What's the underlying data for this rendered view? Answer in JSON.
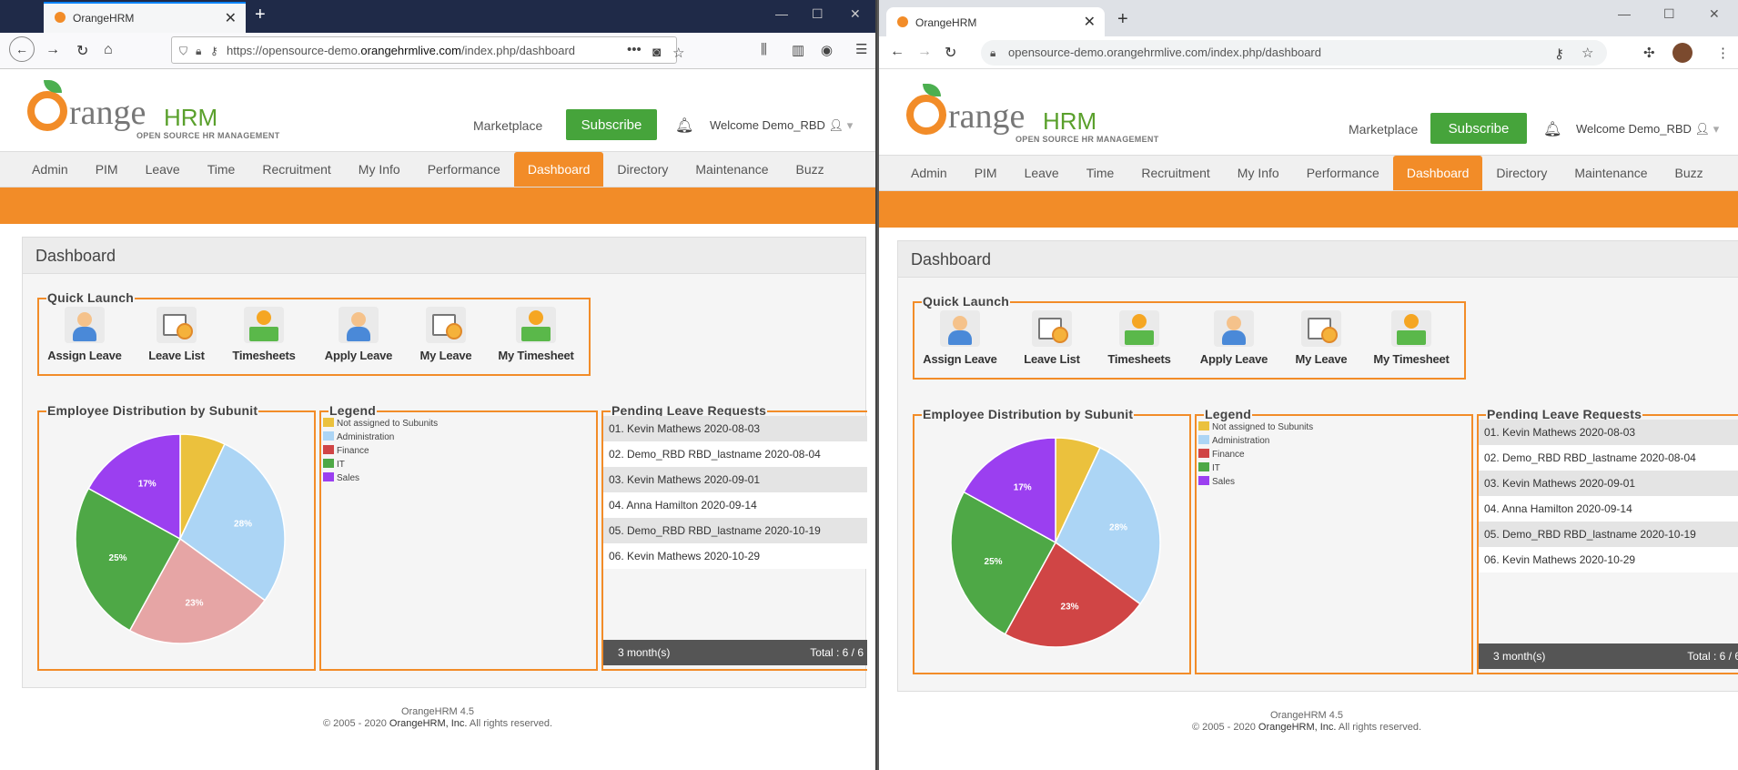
{
  "browser1": {
    "tab_title": "OrangeHRM",
    "url_prefix": "https://opensource-demo.",
    "url_domain": "orangehrmlive.com",
    "url_path": "/index.php/dashboard"
  },
  "browser2": {
    "tab_title": "OrangeHRM",
    "url_prefix": "opensource-demo.",
    "url_domain": "orangehrmlive.com",
    "url_path": "/index.php/dashboard"
  },
  "header": {
    "logo_range": "range",
    "logo_hrm": "HRM",
    "logo_tagline": "OPEN SOURCE HR MANAGEMENT",
    "marketplace": "Marketplace",
    "subscribe": "Subscribe",
    "welcome": "Welcome Demo_RBD"
  },
  "nav": [
    "Admin",
    "PIM",
    "Leave",
    "Time",
    "Recruitment",
    "My Info",
    "Performance",
    "Dashboard",
    "Directory",
    "Maintenance",
    "Buzz"
  ],
  "nav_active_index": 7,
  "dashboard": {
    "title": "Dashboard",
    "quick_launch": {
      "label": "Quick Launch",
      "items": [
        "Assign Leave",
        "Leave List",
        "Timesheets",
        "Apply Leave",
        "My Leave",
        "My Timesheet"
      ]
    },
    "distribution_label": "Employee Distribution by Subunit",
    "legend_label": "Legend",
    "legend": [
      {
        "label": "Not assigned to Subunits",
        "color": "#ebc13d"
      },
      {
        "label": "Administration",
        "color": "#acd5f5"
      },
      {
        "label": "Finance",
        "color": "#d04545"
      },
      {
        "label": "IT",
        "color": "#4ea846"
      },
      {
        "label": "Sales",
        "color": "#9b3ff0"
      }
    ],
    "pending_label": "Pending Leave Requests",
    "pending": [
      "01. Kevin Mathews 2020-08-03",
      "02. Demo_RBD RBD_lastname 2020-08-04",
      "03. Kevin Mathews 2020-09-01",
      "04. Anna Hamilton 2020-09-14",
      "05. Demo_RBD RBD_lastname 2020-10-19",
      "06. Kevin Mathews 2020-10-29"
    ],
    "pending_period": "3 month(s)",
    "pending_total": "Total : 6 / 6"
  },
  "chart_data": [
    {
      "type": "pie",
      "labels": [
        "Not assigned to Subunits",
        "Administration",
        "Finance",
        "IT",
        "Sales"
      ],
      "values": [
        7,
        28,
        23,
        25,
        17
      ],
      "slice_labels": [
        "",
        "28%",
        "23%",
        "25%",
        "17%"
      ],
      "colors": [
        "#ebc13d",
        "#acd5f5",
        "#e6a5a5",
        "#4ea846",
        "#9b3ff0"
      ]
    },
    {
      "type": "pie",
      "labels": [
        "Not assigned to Subunits",
        "Administration",
        "Finance",
        "IT",
        "Sales"
      ],
      "values": [
        7,
        28,
        23,
        25,
        17
      ],
      "slice_labels": [
        "",
        "28%",
        "23%",
        "25%",
        "17%"
      ],
      "colors": [
        "#ebc13d",
        "#acd5f5",
        "#d04545",
        "#4ea846",
        "#9b3ff0"
      ]
    }
  ],
  "footer": {
    "version": "OrangeHRM 4.5",
    "copyright_pre": "© 2005 - 2020 ",
    "copyright_brand": "OrangeHRM, Inc.",
    "copyright_post": " All rights reserved."
  }
}
